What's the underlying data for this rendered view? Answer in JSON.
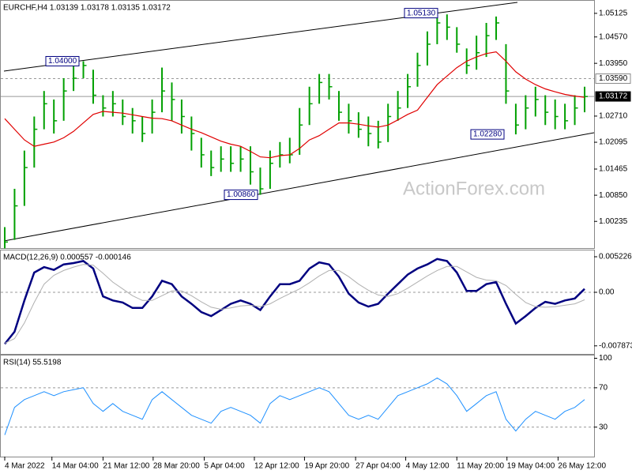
{
  "chart_data": [
    {
      "type": "ohlc",
      "title": "EURCHF,H4  1.03139 1.03178 1.03135 1.03172",
      "watermark": "ActionForex.com",
      "color": "#00a000",
      "xlim": [
        0,
        59
      ],
      "ylim": [
        0.99608,
        1.0542
      ],
      "yticks": [
        1.05125,
        {
          "value": 1.0457,
          "label": "1.04570"
        },
        {
          "value": 1.0395,
          "label": "1.03950"
        },
        {
          "value": 1.0271,
          "label": "1.02710"
        },
        1.02095,
        1.01465,
        {
          "value": 1.0085,
          "label": "1.00850"
        },
        1.00235
      ],
      "high": [
        1.001,
        1.01,
        1.019,
        1.027,
        1.033,
        1.031,
        1.036,
        1.039,
        1.04,
        1.038,
        1.032,
        1.033,
        1.031,
        1.029,
        1.027,
        1.031,
        1.0385,
        1.035,
        1.031,
        1.027,
        1.022,
        1.019,
        1.02,
        1.02,
        1.02,
        1.02,
        1.015,
        1.019,
        1.021,
        1.022,
        1.029,
        1.034,
        1.037,
        1.037,
        1.033,
        1.03,
        1.028,
        1.027,
        1.026,
        1.03,
        1.033,
        1.037,
        1.042,
        1.047,
        1.0513,
        1.051,
        1.048,
        1.043,
        1.046,
        1.049,
        1.0505,
        1.044,
        1.03,
        1.032,
        1.034,
        1.032,
        1.031,
        1.03,
        1.032,
        1.034
      ],
      "low": [
        0.996,
        0.998,
        1.006,
        1.015,
        1.024,
        1.023,
        1.026,
        1.033,
        1.036,
        1.03,
        1.027,
        1.027,
        1.025,
        1.023,
        1.021,
        1.023,
        1.028,
        1.026,
        1.023,
        1.019,
        1.015,
        1.013,
        1.014,
        1.014,
        1.014,
        1.011,
        1.0086,
        1.01,
        1.015,
        1.016,
        1.018,
        1.025,
        1.03,
        1.031,
        1.026,
        1.023,
        1.022,
        1.02,
        1.0195,
        1.021,
        1.026,
        1.029,
        1.034,
        1.039,
        1.044,
        1.045,
        1.042,
        1.037,
        1.038,
        1.041,
        1.045,
        1.03,
        1.0228,
        1.024,
        1.027,
        1.025,
        1.024,
        1.024,
        1.025,
        1.028
      ],
      "close": [
        0.9975,
        1.006,
        1.015,
        1.024,
        1.03,
        1.026,
        1.033,
        1.036,
        1.039,
        1.032,
        1.029,
        1.03,
        1.027,
        1.026,
        1.023,
        1.028,
        1.033,
        1.031,
        1.027,
        1.023,
        1.018,
        1.015,
        1.017,
        1.016,
        1.017,
        1.014,
        1.01,
        1.016,
        1.018,
        1.018,
        1.025,
        1.03,
        1.035,
        1.034,
        1.028,
        1.026,
        1.024,
        1.023,
        1.021,
        1.027,
        1.029,
        1.034,
        1.039,
        1.044,
        1.049,
        1.048,
        1.044,
        1.039,
        1.042,
        1.046,
        1.049,
        1.033,
        1.025,
        1.029,
        1.031,
        1.028,
        1.027,
        1.026,
        1.029,
        1.0317
      ],
      "moving_average": {
        "color": "#e00000",
        "values": [
          1.0265,
          1.024,
          1.0215,
          1.02,
          1.0205,
          1.021,
          1.022,
          1.0235,
          1.0255,
          1.0275,
          1.0282,
          1.028,
          1.0278,
          1.0274,
          1.027,
          1.0266,
          1.0265,
          1.026,
          1.025,
          1.024,
          1.0232,
          1.0222,
          1.0212,
          1.0205,
          1.02,
          1.0188,
          1.0175,
          1.0173,
          1.0178,
          1.018,
          1.0195,
          1.0215,
          1.0225,
          1.024,
          1.0255,
          1.0255,
          1.0252,
          1.0248,
          1.0245,
          1.025,
          1.0262,
          1.0275,
          1.0285,
          1.0315,
          1.0345,
          1.0365,
          1.0385,
          1.04,
          1.041,
          1.0418,
          1.0422,
          1.04,
          1.0375,
          1.0358,
          1.0345,
          1.0335,
          1.0328,
          1.0322,
          1.0318,
          1.0315
        ]
      },
      "levels": [
        {
          "value": 1.0359,
          "label": "1.03590"
        },
        {
          "value": 1.03172,
          "label": "1.03172"
        }
      ],
      "annotations": [
        {
          "value": 1.04,
          "label": "1.04000"
        },
        {
          "value": 1.0513,
          "label": "1.05130"
        },
        {
          "value": 1.0086,
          "label": "1.00860"
        },
        {
          "value": 1.0228,
          "label": "1.02280"
        }
      ]
    },
    {
      "type": "line",
      "title": "MACD(12,26,9) 0.000557 -0.000146",
      "xlim": [
        0,
        59
      ],
      "ylim": [
        -0.009058,
        0.006155
      ],
      "yticks": [
        0.005226,
        {
          "value": 0,
          "label": "0.00"
        },
        -0.007873
      ],
      "levels": [
        0
      ],
      "series": [
        {
          "color": "#000080",
          "values": [
            -0.0076,
            -0.0058,
            -0.0012,
            0.0029,
            0.0037,
            0.0033,
            0.0041,
            0.0043,
            0.0046,
            0.0035,
            -0.0006,
            -0.0012,
            -0.0015,
            -0.0023,
            -0.0023,
            -0.0006,
            0.0017,
            0.0012,
            -0.0006,
            -0.0017,
            -0.0029,
            -0.0035,
            -0.0026,
            -0.0017,
            -0.0012,
            -0.0017,
            -0.0026,
            -0.0006,
            0.0012,
            0.0012,
            0.0017,
            0.0035,
            0.0044,
            0.0041,
            0.0023,
            -0.0002,
            -0.0015,
            -0.0021,
            -0.0017,
            -0.0002,
            0.0012,
            0.0026,
            0.0035,
            0.0041,
            0.0049,
            0.0046,
            0.0029,
            0.0002,
            0.0002,
            0.0012,
            0.0015,
            -0.0017,
            -0.0046,
            -0.0035,
            -0.0023,
            -0.0014,
            -0.0017,
            -0.0012,
            -0.0009,
            0.0005
          ]
        },
        {
          "color": "#b0b0b0",
          "values": [
            -0.0075,
            -0.0068,
            -0.0045,
            -0.0015,
            0.0012,
            0.0025,
            0.0032,
            0.0037,
            0.0041,
            0.004,
            0.0028,
            0.0015,
            0.0005,
            -0.0005,
            -0.0012,
            -0.0012,
            -0.0005,
            0.0002,
            0.0002,
            -0.0005,
            -0.0014,
            -0.0022,
            -0.0025,
            -0.0023,
            -0.002,
            -0.0019,
            -0.0021,
            -0.0017,
            -0.0009,
            -0.0002,
            0.0005,
            0.0014,
            0.0024,
            0.0032,
            0.0032,
            0.0023,
            0.0012,
            0.0003,
            -0.0004,
            -0.0006,
            -0.0002,
            0.0006,
            0.0015,
            0.0024,
            0.0032,
            0.0038,
            0.0038,
            0.003,
            0.0022,
            0.0018,
            0.0017,
            0.001,
            -0.0003,
            -0.0015,
            -0.0021,
            -0.0022,
            -0.0021,
            -0.0019,
            -0.0017,
            -0.0011
          ]
        }
      ]
    },
    {
      "type": "line",
      "title": "RSI(14) 55.5198",
      "xlim": [
        0,
        59
      ],
      "ylim": [
        0,
        102
      ],
      "yticks": [
        100,
        70,
        30
      ],
      "levels": [
        70,
        30
      ],
      "xticks": [
        {
          "value": 0,
          "label": "4 Mar 2022"
        },
        {
          "value": 4.8,
          "label": "14 Mar 04:00"
        },
        {
          "value": 10,
          "label": "21 Mar 12:00"
        },
        {
          "value": 15.1,
          "label": "28 Mar 20:00"
        },
        {
          "value": 20.3,
          "label": "5 Apr 04:00"
        },
        {
          "value": 25.4,
          "label": "12 Apr 12:00"
        },
        {
          "value": 30.5,
          "label": "19 Apr 20:00"
        },
        {
          "value": 35.7,
          "label": "27 Apr 04:00"
        },
        {
          "value": 40.8,
          "label": "4 May 12:00"
        },
        {
          "value": 46,
          "label": "11 May 20:00"
        },
        {
          "value": 51.1,
          "label": "19 May 04:00"
        },
        {
          "value": 56.3,
          "label": "26 May 12:00"
        }
      ],
      "series": [
        {
          "color": "#1e90ff",
          "values": [
            22,
            50,
            58,
            62,
            66,
            62,
            66,
            68,
            70,
            54,
            46,
            54,
            46,
            42,
            38,
            58,
            66,
            58,
            50,
            42,
            38,
            34,
            46,
            50,
            46,
            42,
            34,
            54,
            62,
            58,
            62,
            66,
            70,
            66,
            54,
            42,
            38,
            42,
            38,
            50,
            62,
            66,
            70,
            74,
            80,
            74,
            62,
            46,
            54,
            62,
            66,
            38,
            26,
            38,
            46,
            42,
            38,
            46,
            50,
            58
          ]
        }
      ]
    }
  ]
}
